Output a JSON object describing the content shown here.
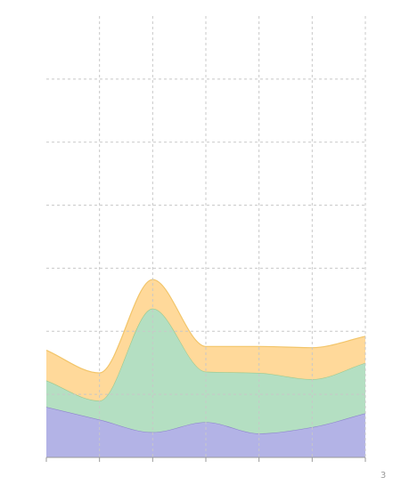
{
  "chart_data": {
    "type": "area",
    "stacked": true,
    "smooth": true,
    "x": [
      0,
      1,
      2,
      3,
      4,
      5,
      6
    ],
    "xlim": [
      0,
      6
    ],
    "ylim": [
      0,
      350
    ],
    "grid": true,
    "legend": "none",
    "x_tick_labels": [
      "",
      "",
      "",
      "",
      "",
      "",
      "3"
    ],
    "series": [
      {
        "values": [
          40,
          30,
          20,
          28,
          19,
          24,
          35
        ],
        "color": "#b3b3e6",
        "line_color": "#8e86cc"
      },
      {
        "values": [
          21,
          15,
          98,
          40,
          48,
          38,
          40
        ],
        "color": "#b4dfc2",
        "line_color": "#9ec98f"
      },
      {
        "values": [
          24,
          22,
          23,
          20,
          21,
          25,
          21
        ],
        "color": "#ffd99a",
        "line_color": "#f2c56a"
      }
    ]
  }
}
